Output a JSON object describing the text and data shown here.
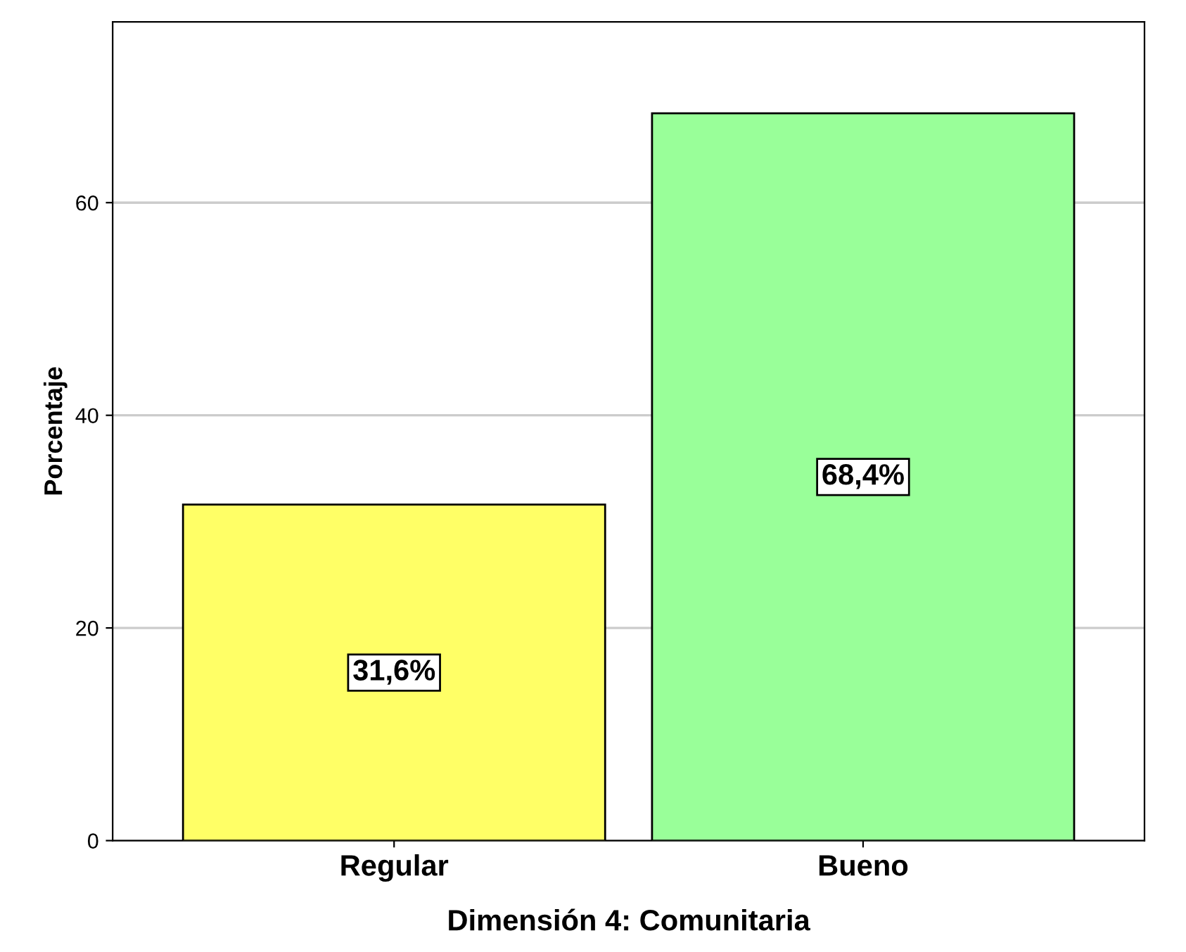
{
  "chart_data": {
    "type": "bar",
    "xlabel": "Dimensión 4: Comunitaria",
    "ylabel": "Porcentaje",
    "categories": [
      "Regular",
      "Bueno"
    ],
    "values": [
      31.6,
      68.4
    ],
    "colors": [
      "#ffff66",
      "#99ff99"
    ],
    "value_labels": [
      "31,6%",
      "68,4%"
    ],
    "ylim": [
      0,
      77
    ],
    "yticks": [
      0,
      20,
      40,
      60
    ],
    "grid": "y"
  }
}
